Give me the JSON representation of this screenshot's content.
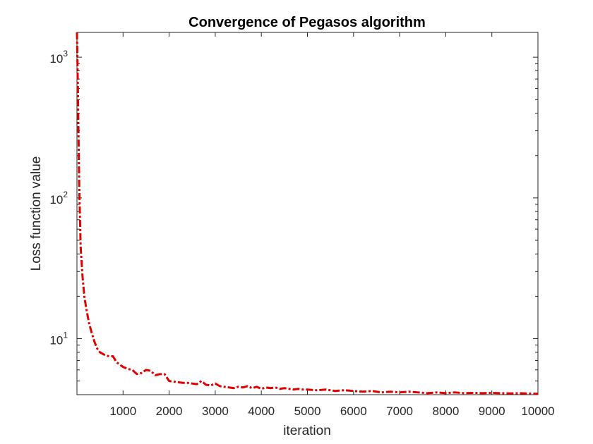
{
  "chart_data": {
    "type": "line",
    "title": "Convergence of Pegasos algorithm",
    "xlabel": "iteration",
    "ylabel": "Loss function value",
    "xlim": [
      0,
      10000
    ],
    "ylim": [
      4,
      1500
    ],
    "yscale": "log",
    "grid": false,
    "x_ticks": [
      1000,
      2000,
      3000,
      4000,
      5000,
      6000,
      7000,
      8000,
      9000,
      10000
    ],
    "x_tick_labels": [
      "1000",
      "2000",
      "3000",
      "4000",
      "5000",
      "6000",
      "7000",
      "8000",
      "9000",
      "10000"
    ],
    "y_ticks": [
      10,
      100,
      1000
    ],
    "y_tick_labels": [
      {
        "base": "10",
        "exp": "1"
      },
      {
        "base": "10",
        "exp": "2"
      },
      {
        "base": "10",
        "exp": "3"
      }
    ],
    "series": [
      {
        "color": "#e00000",
        "line_style": "dash-dot",
        "x": [
          0,
          20,
          50,
          80,
          120,
          160,
          200,
          260,
          320,
          380,
          440,
          500,
          560,
          620,
          700,
          780,
          860,
          940,
          1000,
          1100,
          1200,
          1300,
          1400,
          1500,
          1600,
          1700,
          1800,
          1900,
          2000,
          2100,
          2200,
          2300,
          2400,
          2500,
          2600,
          2700,
          2800,
          2900,
          3000,
          3100,
          3200,
          3300,
          3400,
          3500,
          3600,
          3700,
          3800,
          3900,
          4000,
          4100,
          4200,
          4300,
          4400,
          4500,
          4600,
          4700,
          4800,
          4900,
          5000,
          5200,
          5400,
          5600,
          5800,
          6000,
          6200,
          6400,
          6600,
          6800,
          7000,
          7200,
          7400,
          7600,
          7800,
          8000,
          8200,
          8400,
          8600,
          8800,
          9000,
          9200,
          9400,
          9600,
          9800,
          10000
        ],
        "y": [
          1500,
          600,
          120,
          45,
          28,
          20,
          16.5,
          13,
          11,
          9.5,
          8.5,
          8,
          7.8,
          7.6,
          7.5,
          7.5,
          6.8,
          6.5,
          6.3,
          6.1,
          6.0,
          5.6,
          5.7,
          6.0,
          5.9,
          5.5,
          5.6,
          5.6,
          5.0,
          4.95,
          4.9,
          4.85,
          4.85,
          4.8,
          4.75,
          5.0,
          4.7,
          4.65,
          4.8,
          4.6,
          4.55,
          4.5,
          4.45,
          4.55,
          4.5,
          4.6,
          4.45,
          4.55,
          4.4,
          4.5,
          4.45,
          4.5,
          4.4,
          4.45,
          4.4,
          4.35,
          4.4,
          4.35,
          4.35,
          4.3,
          4.35,
          4.25,
          4.3,
          4.25,
          4.2,
          4.25,
          4.15,
          4.2,
          4.15,
          4.2,
          4.15,
          4.1,
          4.15,
          4.1,
          4.15,
          4.1,
          4.12,
          4.1,
          4.12,
          4.1,
          4.08,
          4.1,
          4.07,
          4.06
        ]
      }
    ]
  }
}
